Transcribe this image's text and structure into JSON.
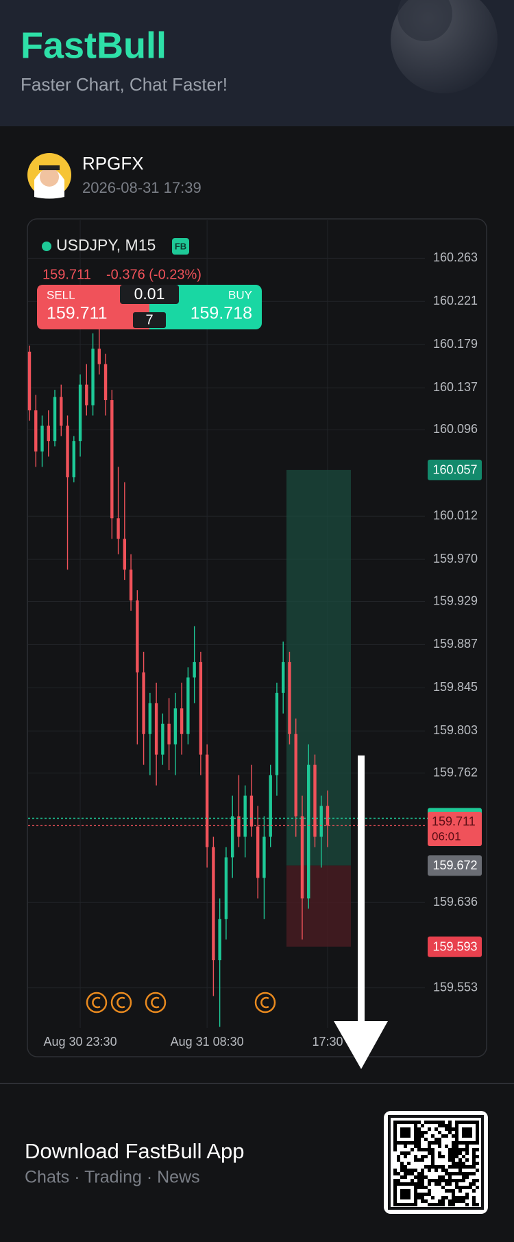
{
  "header": {
    "title": "FastBull",
    "subtitle": "Faster Chart, Chat Faster!"
  },
  "post": {
    "user": "RPGFX",
    "time": "2026-08-31 17:39"
  },
  "chart_data": {
    "type": "candlestick",
    "symbol": "USDJPY, M15",
    "badge": "FB",
    "last": 159.711,
    "change": "-0.376 (-0.23%)",
    "sell": {
      "label": "SELL",
      "price": 159.711
    },
    "buy": {
      "label": "BUY",
      "price": 159.718
    },
    "lot": 0.01,
    "spread": 7,
    "up_color": "#1ec997",
    "down_color": "#f0525a",
    "ylim": [
      159.514,
      160.3
    ],
    "yticks": [
      160.263,
      160.221,
      160.179,
      160.137,
      160.096,
      160.012,
      {
        "value": 159.97,
        "label": "159.970"
      },
      159.929,
      159.887,
      159.845,
      159.803,
      159.762,
      159.636,
      159.553
    ],
    "categories": [
      null,
      null,
      null,
      null,
      null,
      null,
      null,
      null,
      "Aug 30 23:30",
      null,
      null,
      null,
      null,
      null,
      null,
      null,
      null,
      null,
      null,
      null,
      null,
      null,
      null,
      null,
      null,
      null,
      null,
      null,
      "Aug 31 08:30",
      null,
      null,
      null,
      null,
      null,
      null,
      null,
      null,
      null,
      null,
      null,
      null,
      null,
      null,
      null,
      null,
      null,
      null,
      "17:30"
    ],
    "ohlc": [
      [
        160.172,
        160.178,
        160.105,
        160.115
      ],
      [
        160.115,
        160.13,
        160.06,
        160.075
      ],
      [
        160.075,
        160.11,
        160.06,
        160.1
      ],
      [
        160.1,
        160.115,
        160.07,
        160.085
      ],
      [
        160.085,
        160.135,
        160.08,
        160.128
      ],
      [
        160.128,
        160.14,
        160.09,
        160.1
      ],
      [
        160.1,
        160.11,
        159.96,
        160.05
      ],
      [
        160.05,
        160.09,
        160.045,
        160.085
      ],
      [
        160.085,
        160.15,
        160.07,
        160.14
      ],
      [
        160.14,
        160.16,
        160.11,
        160.12
      ],
      [
        160.12,
        160.19,
        160.11,
        160.175
      ],
      [
        160.175,
        160.2,
        160.15,
        160.16
      ],
      [
        160.16,
        160.17,
        160.11,
        160.125
      ],
      [
        160.125,
        160.135,
        159.99,
        160.01
      ],
      [
        160.01,
        160.06,
        159.975,
        159.99
      ],
      [
        159.99,
        160.045,
        159.95,
        159.96
      ],
      [
        159.96,
        159.975,
        159.92,
        159.93
      ],
      [
        159.93,
        159.94,
        159.79,
        159.86
      ],
      [
        159.86,
        159.88,
        159.77,
        159.8
      ],
      [
        159.8,
        159.84,
        159.76,
        159.83
      ],
      [
        159.83,
        159.85,
        159.75,
        159.78
      ],
      [
        159.78,
        159.82,
        159.77,
        159.81
      ],
      [
        159.81,
        159.835,
        159.765,
        159.79
      ],
      [
        159.79,
        159.84,
        159.76,
        159.825
      ],
      [
        159.825,
        159.85,
        159.78,
        159.8
      ],
      [
        159.8,
        159.865,
        159.79,
        159.855
      ],
      [
        159.855,
        159.905,
        159.83,
        159.87
      ],
      [
        159.87,
        159.88,
        159.76,
        159.78
      ],
      [
        159.78,
        159.79,
        159.67,
        159.69
      ],
      [
        159.69,
        159.7,
        159.545,
        159.58
      ],
      [
        159.58,
        159.64,
        159.515,
        159.62
      ],
      [
        159.62,
        159.69,
        159.6,
        159.68
      ],
      [
        159.68,
        159.74,
        159.66,
        159.72
      ],
      [
        159.72,
        159.76,
        159.69,
        159.7
      ],
      [
        159.7,
        159.75,
        159.68,
        159.74
      ],
      [
        159.74,
        159.77,
        159.7,
        159.71
      ],
      [
        159.71,
        159.73,
        159.64,
        159.66
      ],
      [
        159.66,
        159.72,
        159.62,
        159.7
      ],
      [
        159.7,
        159.77,
        159.69,
        159.76
      ],
      [
        159.76,
        159.85,
        159.74,
        159.84
      ],
      [
        159.84,
        159.89,
        159.82,
        159.87
      ],
      [
        159.87,
        159.88,
        159.79,
        159.8
      ],
      [
        159.8,
        159.815,
        159.7,
        159.72
      ],
      [
        159.72,
        159.74,
        159.6,
        159.64
      ],
      [
        159.64,
        159.79,
        159.63,
        159.77
      ],
      [
        159.77,
        159.78,
        159.69,
        159.7
      ],
      [
        159.7,
        159.74,
        159.67,
        159.73
      ],
      [
        159.73,
        159.745,
        159.69,
        159.711
      ]
    ],
    "levels": {
      "take_profit": 160.057,
      "entry": 159.672,
      "stop_loss": 159.593,
      "ask": 159.718,
      "bid": 159.711,
      "countdown": "06:01"
    }
  },
  "footer": {
    "title": "Download FastBull App",
    "subtitle": "Chats · Trading · News"
  }
}
